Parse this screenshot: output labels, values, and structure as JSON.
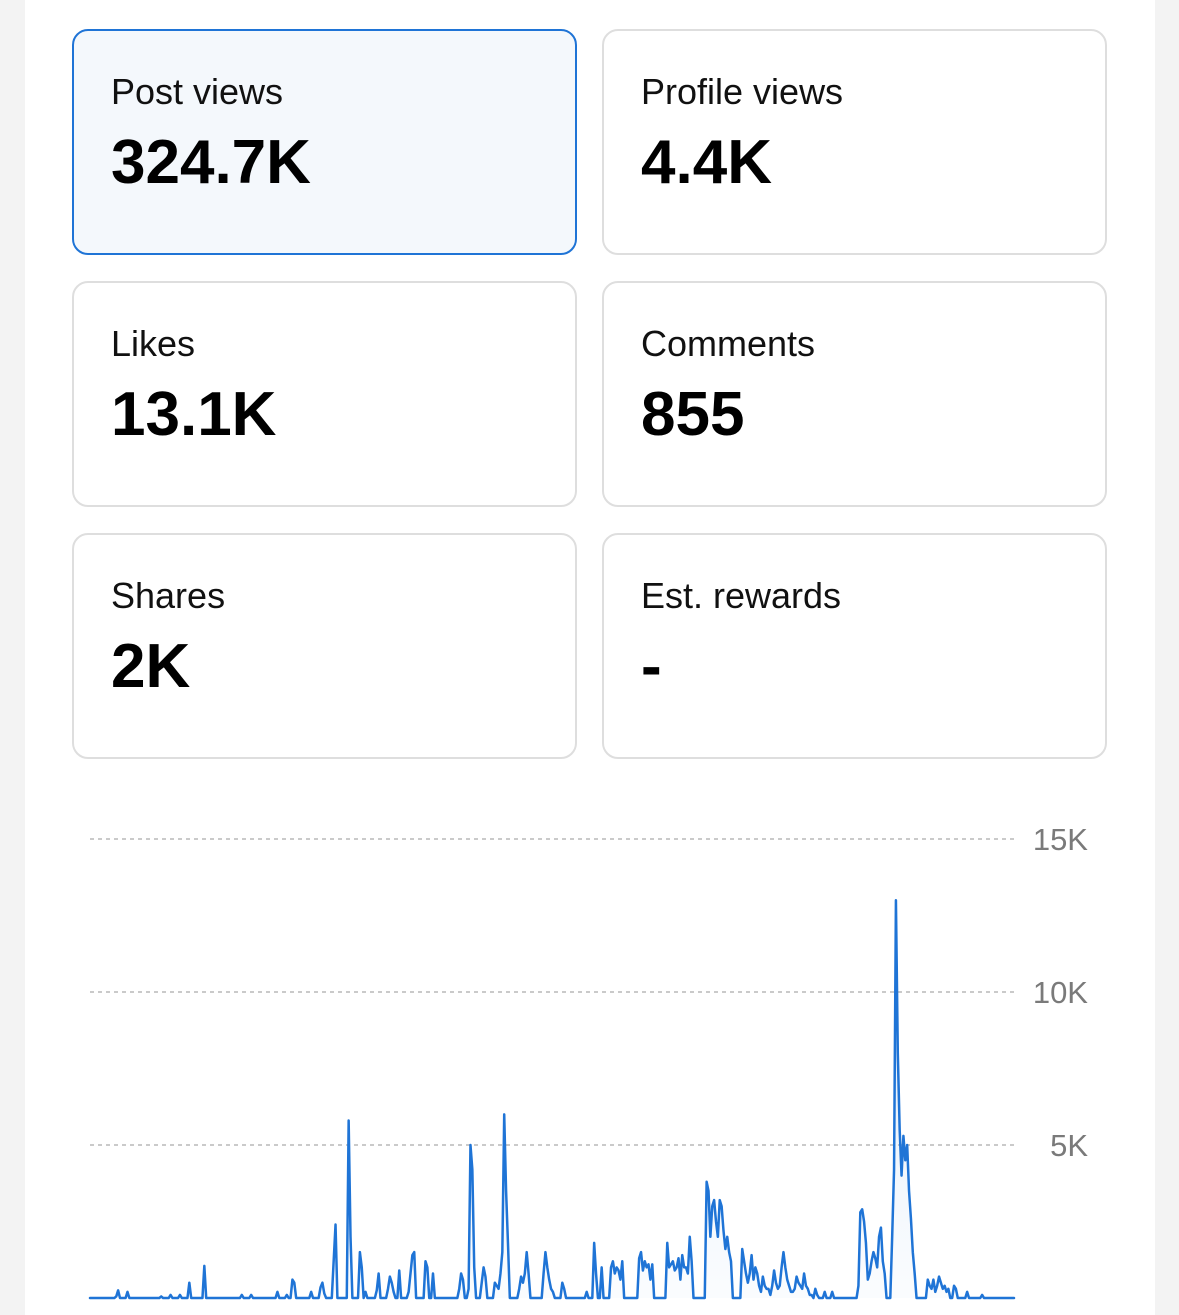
{
  "metrics": [
    {
      "label": "Post views",
      "value": "324.7K",
      "selected": true
    },
    {
      "label": "Profile views",
      "value": "4.4K",
      "selected": false
    },
    {
      "label": "Likes",
      "value": "13.1K",
      "selected": false
    },
    {
      "label": "Comments",
      "value": "855",
      "selected": false
    },
    {
      "label": "Shares",
      "value": "2K",
      "selected": false
    },
    {
      "label": "Est. rewards",
      "value": "-",
      "selected": false
    }
  ],
  "colors": {
    "accent": "#1f74d6",
    "card_border": "#dedede",
    "selected_bg": "#f4f8fc",
    "tick_text": "#7a7a7a",
    "grid": "#b8b8b8"
  },
  "chart_data": {
    "type": "area",
    "title": "",
    "xlabel": "",
    "ylabel": "",
    "ylim": [
      0,
      15000
    ],
    "y_ticks": [
      {
        "value": 15000,
        "label": "15K"
      },
      {
        "value": 10000,
        "label": "10K"
      },
      {
        "value": 5000,
        "label": "5K"
      }
    ],
    "grid": "horizontal-dashed",
    "y_axis_position": "right",
    "legend": "none",
    "series": [
      {
        "values": [
          0,
          0,
          0,
          0,
          0,
          0,
          0,
          0,
          0,
          0,
          0,
          0,
          0,
          0,
          50,
          250,
          0,
          0,
          0,
          0,
          200,
          0,
          0,
          0,
          0,
          0,
          0,
          0,
          0,
          0,
          0,
          0,
          0,
          0,
          0,
          0,
          0,
          0,
          50,
          0,
          0,
          0,
          0,
          100,
          0,
          0,
          0,
          0,
          100,
          0,
          0,
          0,
          0,
          500,
          0,
          0,
          0,
          0,
          0,
          0,
          0,
          1050,
          0,
          0,
          0,
          0,
          0,
          0,
          0,
          0,
          0,
          0,
          0,
          0,
          0,
          0,
          0,
          0,
          0,
          0,
          0,
          100,
          0,
          0,
          0,
          0,
          100,
          0,
          0,
          0,
          0,
          0,
          0,
          0,
          0,
          0,
          0,
          0,
          0,
          0,
          200,
          0,
          0,
          0,
          0,
          100,
          0,
          0,
          600,
          500,
          0,
          0,
          0,
          0,
          0,
          0,
          0,
          0,
          200,
          0,
          0,
          0,
          0,
          350,
          500,
          150,
          0,
          0,
          0,
          0,
          1200,
          2400,
          0,
          0,
          0,
          0,
          0,
          0,
          5800,
          2000,
          0,
          0,
          0,
          0,
          1500,
          1000,
          0,
          200,
          0,
          0,
          0,
          0,
          0,
          250,
          800,
          0,
          0,
          0,
          0,
          300,
          700,
          500,
          200,
          0,
          0,
          900,
          0,
          0,
          0,
          0,
          200,
          800,
          1400,
          1500,
          0,
          0,
          0,
          0,
          0,
          1200,
          1000,
          0,
          0,
          800,
          0,
          0,
          0,
          0,
          0,
          0,
          0,
          0,
          0,
          0,
          0,
          0,
          0,
          300,
          800,
          600,
          0,
          0,
          300,
          5000,
          4200,
          1000,
          0,
          0,
          0,
          500,
          1000,
          700,
          0,
          0,
          0,
          0,
          500,
          400,
          300,
          800,
          1500,
          6000,
          3500,
          1800,
          0,
          0,
          0,
          0,
          0,
          300,
          700,
          500,
          800,
          1500,
          800,
          0,
          0,
          0,
          0,
          0,
          0,
          0,
          800,
          1500,
          1000,
          600,
          300,
          200,
          0,
          0,
          0,
          0,
          500,
          300,
          0,
          0,
          0,
          0,
          0,
          0,
          0,
          0,
          0,
          0,
          0,
          200,
          0,
          0,
          0,
          1800,
          800,
          0,
          0,
          1000,
          0,
          0,
          0,
          0,
          1000,
          1200,
          800,
          1000,
          900,
          600,
          1200,
          0,
          0,
          0,
          0,
          0,
          0,
          0,
          0,
          1300,
          1500,
          900,
          1200,
          1000,
          1100,
          600,
          1100,
          0,
          0,
          0,
          0,
          0,
          0,
          0,
          1800,
          1000,
          1100,
          1200,
          900,
          1000,
          1300,
          600,
          1400,
          1000,
          1000,
          800,
          2000,
          1200,
          0,
          0,
          0,
          0,
          0,
          0,
          0,
          3800,
          3500,
          2000,
          3000,
          3200,
          2500,
          2000,
          3200,
          3000,
          2200,
          1600,
          2000,
          1500,
          1200,
          0,
          0,
          0,
          0,
          0,
          1600,
          1200,
          800,
          500,
          800,
          1400,
          600,
          1000,
          800,
          400,
          200,
          700,
          400,
          300,
          300,
          100,
          400,
          900,
          500,
          300,
          400,
          1000,
          1500,
          1000,
          600,
          400,
          200,
          200,
          300,
          700,
          500,
          400,
          300,
          800,
          400,
          300,
          100,
          100,
          0,
          300,
          100,
          0,
          0,
          0,
          200,
          0,
          0,
          0,
          200,
          0,
          0,
          0,
          0,
          0,
          0,
          0,
          0,
          0,
          0,
          0,
          0,
          0,
          400,
          2800,
          2900,
          2500,
          1800,
          600,
          800,
          1200,
          1500,
          1300,
          1000,
          2000,
          2300,
          1200,
          800,
          0,
          0,
          0,
          2000,
          4200,
          13000,
          8000,
          5500,
          4000,
          5300,
          4500,
          5000,
          3500,
          2600,
          1500,
          800,
          0,
          0,
          0,
          0,
          0,
          0,
          600,
          400,
          300,
          600,
          200,
          400,
          700,
          500,
          300,
          400,
          200,
          300,
          0,
          0,
          400,
          300,
          0,
          0,
          0,
          0,
          0,
          200,
          0,
          0,
          0,
          0,
          0,
          0,
          0,
          100,
          0,
          0,
          0,
          0,
          0,
          0,
          0,
          0,
          0,
          0,
          0,
          0,
          0,
          0,
          0,
          0,
          0
        ]
      }
    ]
  }
}
